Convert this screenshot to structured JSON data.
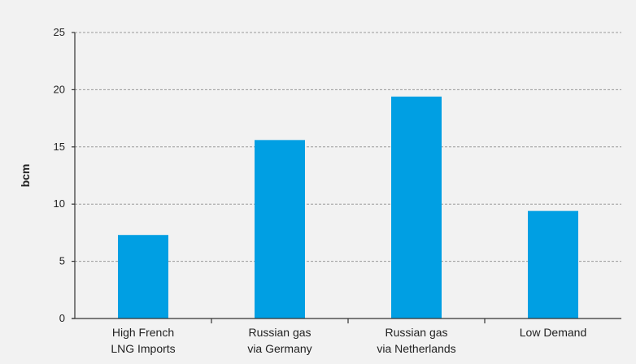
{
  "chart_data": {
    "type": "bar",
    "categories": [
      [
        "High French",
        "LNG Imports"
      ],
      [
        "Russian gas",
        "via Germany"
      ],
      [
        "Russian gas",
        "via Netherlands"
      ],
      [
        "Low Demand"
      ]
    ],
    "values": [
      7.3,
      15.6,
      19.4,
      9.4
    ],
    "ylabel": "bcm",
    "ylim": [
      0,
      25
    ],
    "yticks": [
      0,
      5,
      10,
      15,
      20,
      25
    ],
    "grid": true,
    "bar_color": "#009fe3",
    "background_color": "#f2f2f2"
  }
}
